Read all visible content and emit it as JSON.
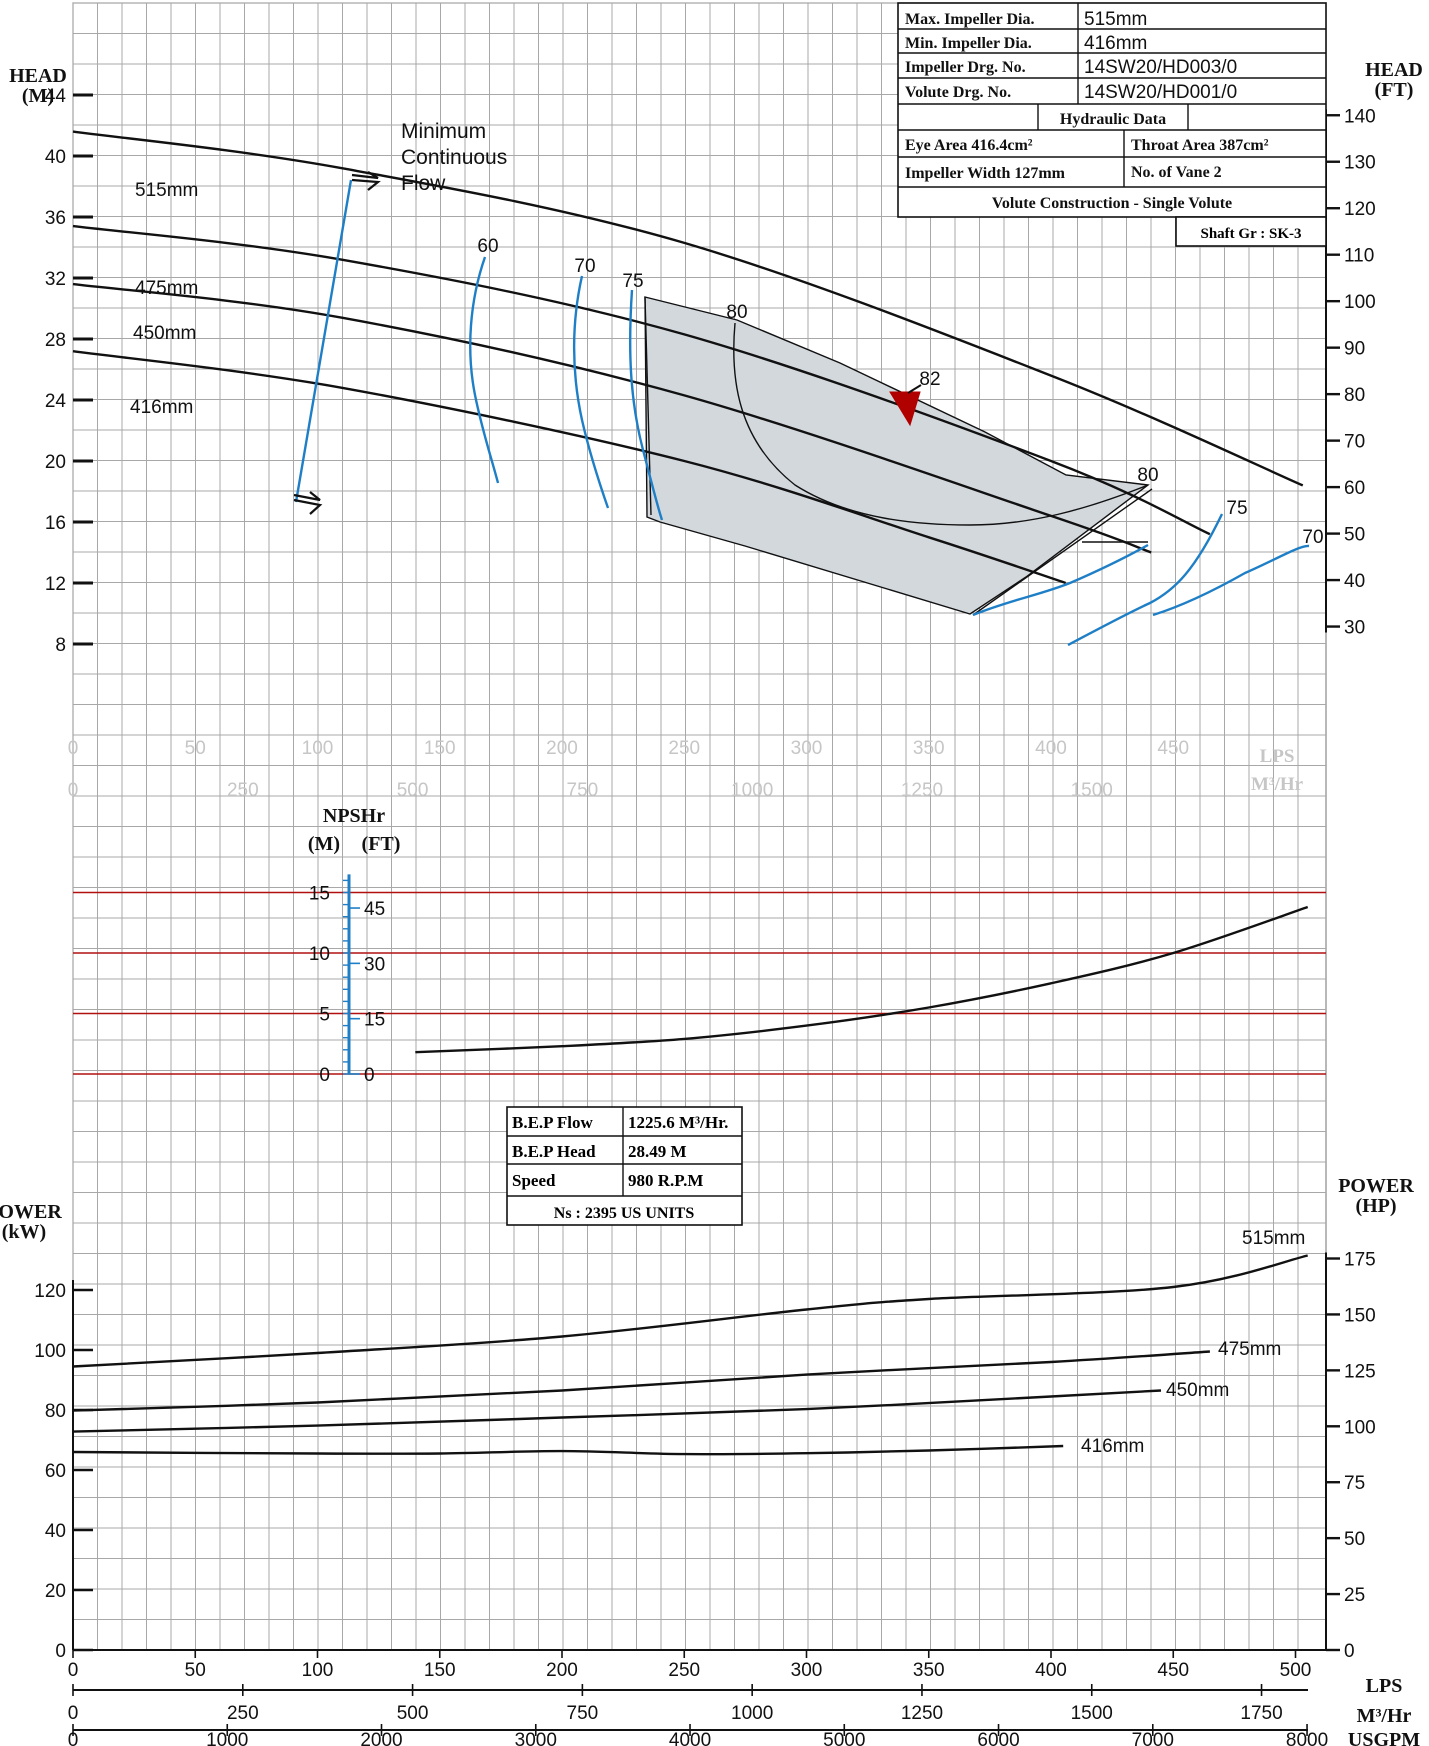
{
  "colors": {
    "curve": "#111111",
    "efficiency": "#1f7fc6",
    "npsh_grid": "#b01010",
    "marker": "#b00000",
    "region_fill": "#d3d8dd",
    "grid": "#a8a8a8"
  },
  "hydraulic_table": {
    "rows": [
      {
        "label": "Max. Impeller Dia.",
        "value": "515mm"
      },
      {
        "label": "Min. Impeller Dia.",
        "value": "416mm"
      },
      {
        "label": "Impeller Drg. No.",
        "value": "14SW20/HD003/0"
      },
      {
        "label": "Volute Drg. No.",
        "value": "14SW20/HD001/0"
      }
    ],
    "section_title": "Hydraulic Data",
    "eye_area": "Eye Area 416.4cm²",
    "throat_area": "Throat Area 387cm²",
    "impeller_width": "Impeller Width 127mm",
    "vanes": "No. of Vane 2",
    "construction": "Volute Construction - Single Volute",
    "shaft": "Shaft Gr : SK-3"
  },
  "bep_table": {
    "rows": [
      {
        "label": "B.E.P Flow",
        "value": "1225.6 M³/Hr."
      },
      {
        "label": "B.E.P Head",
        "value": "28.49 M"
      },
      {
        "label": "Speed",
        "value": "980 R.P.M"
      }
    ],
    "ns": "Ns : 2395 US UNITS"
  },
  "annotations": {
    "min_flow": [
      "Minimum",
      "Continuous",
      "Flow"
    ]
  },
  "chart_data": [
    {
      "type": "line",
      "panel": "head",
      "y_left_title": [
        "HEAD",
        "(M)"
      ],
      "y_right_title": [
        "HEAD",
        "(FT)"
      ],
      "x_unit": "LPS",
      "x_unit2": "M³/Hr",
      "xlim": [
        0,
        510
      ],
      "ylim_m": [
        6,
        46
      ],
      "y_ticks_m": [
        8,
        12,
        16,
        20,
        24,
        28,
        32,
        36,
        40,
        44
      ],
      "y_ticks_ft": [
        30,
        40,
        50,
        60,
        70,
        80,
        90,
        100,
        110,
        120,
        130,
        140
      ],
      "x_ticks_lps": [
        0,
        50,
        100,
        150,
        200,
        250,
        300,
        350,
        400,
        450
      ],
      "x_ticks_m3hr": [
        0,
        250,
        500,
        750,
        1000,
        1250,
        1500
      ],
      "series": [
        {
          "name": "515mm",
          "x": [
            0,
            110,
            250,
            400,
            503
          ],
          "y": [
            41.6,
            39.2,
            34.3,
            25.6,
            18.4
          ]
        },
        {
          "name": "475mm",
          "x": [
            0,
            110,
            250,
            400,
            465
          ],
          "y": [
            35.4,
            33.2,
            28.3,
            20.0,
            15.2
          ]
        },
        {
          "name": "450mm",
          "x": [
            0,
            110,
            250,
            400,
            441
          ],
          "y": [
            31.6,
            29.4,
            24.3,
            16.4,
            14.0
          ]
        },
        {
          "name": "416mm",
          "x": [
            0,
            110,
            250,
            350,
            406
          ],
          "y": [
            27.2,
            24.8,
            20.0,
            15.0,
            12.0
          ]
        }
      ],
      "efficiency_labels": [
        "60",
        "70",
        "75",
        "80",
        "82",
        "80",
        "75",
        "70"
      ]
    },
    {
      "type": "line",
      "panel": "npsh",
      "y_title": "NPSHr",
      "y_left_unit": "(M)",
      "y_right_unit": "(FT)",
      "y_ticks_m": [
        0,
        5,
        10,
        15
      ],
      "y_ticks_ft": [
        0,
        15,
        30,
        45
      ],
      "series": [
        {
          "x": [
            140,
            200,
            250,
            300,
            350,
            400,
            450,
            505
          ],
          "y": [
            1.8,
            2.3,
            2.9,
            4.0,
            5.5,
            7.5,
            10.0,
            13.8
          ]
        }
      ]
    },
    {
      "type": "line",
      "panel": "power",
      "y_left_title": [
        "POWER",
        "(kW)"
      ],
      "y_right_title": [
        "POWER",
        "(HP)"
      ],
      "y_ticks_kw": [
        0,
        20,
        40,
        60,
        80,
        100,
        120
      ],
      "y_ticks_hp": [
        0,
        25,
        50,
        75,
        100,
        125,
        150,
        175
      ],
      "x_title_lps": "LPS",
      "x_title_m3hr": "M³/Hr",
      "x_title_usgpm": "USGPM",
      "x_ticks_lps": [
        0,
        50,
        100,
        150,
        200,
        250,
        300,
        350,
        400,
        450,
        500
      ],
      "x_ticks_m3hr": [
        0,
        250,
        500,
        750,
        1000,
        1250,
        1500,
        1750
      ],
      "x_ticks_usgpm": [
        0,
        1000,
        2000,
        3000,
        4000,
        5000,
        6000,
        7000,
        8000
      ],
      "series": [
        {
          "name": "515mm",
          "x": [
            0,
            100,
            200,
            300,
            350,
            450,
            505
          ],
          "y": [
            94.5,
            99,
            104.5,
            113.5,
            117,
            121,
            131.5
          ]
        },
        {
          "name": "475mm",
          "x": [
            0,
            100,
            200,
            300,
            400,
            465
          ],
          "y": [
            79.8,
            82.5,
            86.5,
            91.8,
            96,
            99.5
          ]
        },
        {
          "name": "450mm",
          "x": [
            0,
            100,
            200,
            300,
            400,
            445
          ],
          "y": [
            72.8,
            74.8,
            77.5,
            80.3,
            84.5,
            86.5
          ]
        },
        {
          "name": "416mm",
          "x": [
            0,
            100,
            150,
            200,
            250,
            300,
            350,
            405
          ],
          "y": [
            66,
            65.5,
            65.5,
            66.3,
            65.3,
            65.6,
            66.5,
            68
          ]
        }
      ]
    }
  ]
}
